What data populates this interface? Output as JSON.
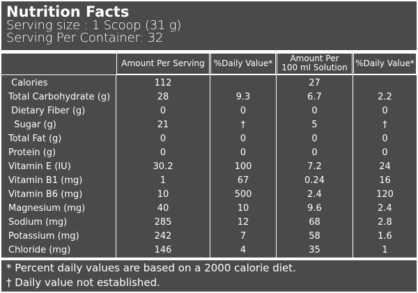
{
  "label": {
    "title": "Nutrition Facts",
    "serving_size": "Serving size : 1 Scoop (31 g)",
    "servings_per_container": "Serving Per Container: 32"
  },
  "columns": {
    "amount_per_serving": "Amount Per Serving",
    "daily_value_1": "%Daily Value*",
    "amount_per_100ml_line1": "Amount Per",
    "amount_per_100ml_line2": "100 ml Solution",
    "daily_value_2": "%Daily Value*"
  },
  "rows": [
    {
      "name": " Calories",
      "per_serving": "112",
      "dv1": "",
      "per_100ml": "27",
      "dv2": ""
    },
    {
      "name": "Total Carbohydrate (g)",
      "per_serving": "28",
      "dv1": "9.3",
      "per_100ml": "6.7",
      "dv2": "2.2"
    },
    {
      "name": " Dietary Fiber (g)",
      "per_serving": "0",
      "dv1": "0",
      "per_100ml": "0",
      "dv2": "0"
    },
    {
      "name": "  Sugar (g)",
      "per_serving": "21",
      "dv1": "†",
      "per_100ml": "5",
      "dv2": "†"
    },
    {
      "name": "Total Fat (g)",
      "per_serving": "0",
      "dv1": "0",
      "per_100ml": "0",
      "dv2": "0"
    },
    {
      "name": "Protein (g)",
      "per_serving": "0",
      "dv1": "0",
      "per_100ml": "0",
      "dv2": "0"
    },
    {
      "name": "Vitamin E (IU)",
      "per_serving": "30.2",
      "dv1": "100",
      "per_100ml": "7.2",
      "dv2": "24"
    },
    {
      "name": "Vitamin B1 (mg)",
      "per_serving": "1",
      "dv1": "67",
      "per_100ml": "0.24",
      "dv2": "16"
    },
    {
      "name": "Vitamin B6 (mg)",
      "per_serving": "10",
      "dv1": "500",
      "per_100ml": "2.4",
      "dv2": "120"
    },
    {
      "name": "Magnesium (mg)",
      "per_serving": "40",
      "dv1": "10",
      "per_100ml": "9.6",
      "dv2": "2.4"
    },
    {
      "name": "Sodium (mg)",
      "per_serving": "285",
      "dv1": "12",
      "per_100ml": "68",
      "dv2": "2.8"
    },
    {
      "name": "Potassium (mg)",
      "per_serving": "242",
      "dv1": "7",
      "per_100ml": "58",
      "dv2": "1.6"
    },
    {
      "name": "Chloride (mg)",
      "per_serving": "146",
      "dv1": "4",
      "per_100ml": "35",
      "dv2": "1"
    }
  ],
  "footer": {
    "note1": "* Percent daily values are based on a 2000 calorie diet.",
    "note2": "† Daily value not established."
  },
  "colors": {
    "background": "#4a4a4a",
    "text": "#ffffff"
  }
}
